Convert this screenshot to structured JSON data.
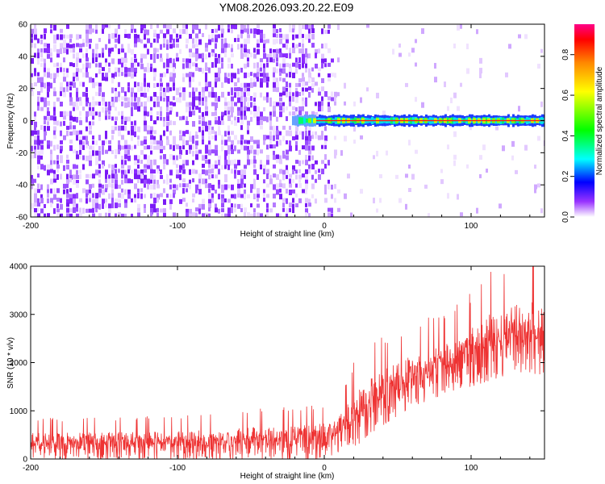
{
  "figure_title": "YM08.2026.093.20.22.E09",
  "chart_data": [
    {
      "type": "heatmap",
      "title": "",
      "xlabel": "Height of straight line (km)",
      "ylabel": "Frequency (Hz)",
      "xlim": [
        -200,
        150
      ],
      "ylim": [
        -60,
        60
      ],
      "xticks": [
        "-200",
        "-100",
        "0",
        "100"
      ],
      "yticks": [
        "60",
        "40",
        "20",
        "0",
        "-20",
        "-40",
        "-60"
      ],
      "colorbar": {
        "label": "Normalized spectral amplitude",
        "range": [
          0.0,
          0.95
        ],
        "ticks": [
          "0.0",
          "0.2",
          "0.4",
          "0.6",
          "0.8"
        ],
        "colors": [
          "#ffffff",
          "#8800ff",
          "#0000ff",
          "#00ffff",
          "#00ff00",
          "#ffff00",
          "#ff8800",
          "#ff0000",
          "#ff0088"
        ]
      },
      "description_series": [
        {
          "name": "broadband noise",
          "x_range": [
            -200,
            0
          ],
          "freq_range": [
            -60,
            60
          ],
          "amplitude": [
            0.0,
            0.15
          ]
        },
        {
          "name": "tonal line",
          "x_range": [
            -22,
            150
          ],
          "freq": 0,
          "amplitude": [
            0.3,
            0.9
          ]
        }
      ]
    },
    {
      "type": "line",
      "title": "",
      "xlabel": "Height of straight line (km)",
      "ylabel": "SNR (10 * v/v)",
      "xlim": [
        -200,
        150
      ],
      "ylim": [
        0,
        4000
      ],
      "xticks": [
        "-200",
        "-100",
        "0",
        "100"
      ],
      "yticks": [
        "4000",
        "3000",
        "2000",
        "1000",
        "0"
      ],
      "color": "#ee3333",
      "series": [
        {
          "name": "SNR",
          "x": [
            -200,
            -180,
            -160,
            -140,
            -120,
            -100,
            -80,
            -60,
            -40,
            -20,
            0,
            10,
            20,
            30,
            40,
            50,
            60,
            70,
            80,
            90,
            100,
            110,
            120,
            130,
            140,
            150
          ],
          "upper": [
            800,
            780,
            790,
            800,
            820,
            830,
            850,
            900,
            980,
            1000,
            1050,
            1200,
            1850,
            2150,
            2350,
            2500,
            2650,
            2700,
            2850,
            2950,
            3250,
            3550,
            3700,
            3800,
            3900,
            3750
          ],
          "lower": [
            0,
            0,
            0,
            0,
            0,
            0,
            0,
            0,
            0,
            0,
            0,
            150,
            200,
            500,
            700,
            900,
            1100,
            1200,
            1300,
            1450,
            1500,
            1600,
            1700,
            1800,
            1800,
            1700
          ]
        }
      ]
    }
  ]
}
